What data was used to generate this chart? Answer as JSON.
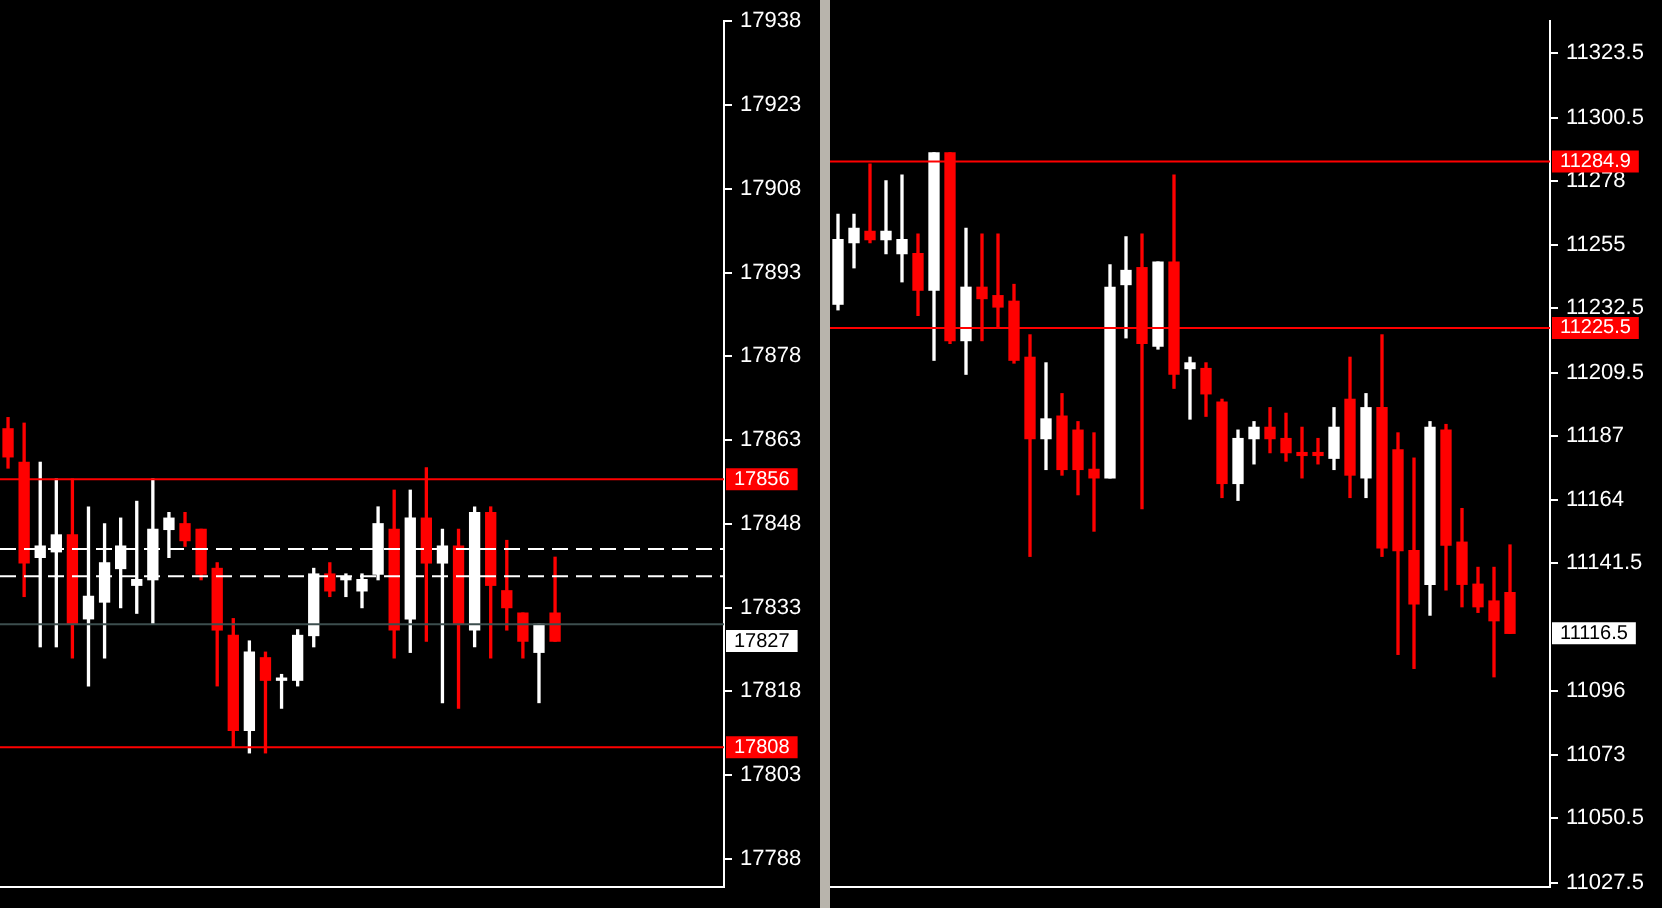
{
  "chart_data": [
    {
      "type": "candlestick",
      "categories": [
        null,
        null,
        null,
        null,
        null,
        null,
        null,
        null,
        null,
        null,
        null,
        null,
        null,
        null,
        null,
        null,
        null,
        null,
        null,
        null,
        null,
        null,
        null,
        null,
        null,
        null,
        null,
        null,
        null,
        null,
        null,
        null,
        null,
        null,
        null,
        null,
        null,
        null,
        null,
        null,
        null,
        null,
        null,
        null,
        null
      ],
      "ohlc": [
        [
          17865,
          17867,
          17858,
          17860
        ],
        [
          17859,
          17866,
          17835,
          17841
        ],
        [
          17842,
          17859,
          17826,
          17844
        ],
        [
          17843,
          17856,
          17826,
          17846
        ],
        [
          17846,
          17856,
          17824,
          17830
        ],
        [
          17831,
          17851,
          17819,
          17835
        ],
        [
          17834,
          17848,
          17824,
          17841
        ],
        [
          17840,
          17849,
          17833,
          17844
        ],
        [
          17837,
          17852,
          17832,
          17838
        ],
        [
          17838,
          17856,
          17830,
          17847
        ],
        [
          17847,
          17850,
          17842,
          17849
        ],
        [
          17848,
          17850,
          17844,
          17845
        ],
        [
          17847,
          17847,
          17838,
          17839
        ],
        [
          17840,
          17841,
          17819,
          17829
        ],
        [
          17828,
          17831,
          17808,
          17811
        ],
        [
          17811,
          17827,
          17807,
          17825
        ],
        [
          17824,
          17825,
          17807,
          17820
        ],
        [
          17820,
          17821,
          17815,
          17820
        ],
        [
          17820,
          17829,
          17819,
          17828
        ],
        [
          17828,
          17840,
          17826,
          17839
        ],
        [
          17839,
          17841,
          17835,
          17836
        ],
        [
          17838,
          17839,
          17835,
          17838
        ],
        [
          17836,
          17839,
          17833,
          17838
        ],
        [
          17839,
          17851,
          17838,
          17848
        ],
        [
          17847,
          17854,
          17824,
          17829
        ],
        [
          17831,
          17854,
          17825,
          17849
        ],
        [
          17849,
          17858,
          17827,
          17841
        ],
        [
          17841,
          17847,
          17816,
          17844
        ],
        [
          17844,
          17847,
          17815,
          17830
        ],
        [
          17829,
          17851,
          17826,
          17850
        ],
        [
          17850,
          17851,
          17824,
          17837
        ],
        [
          17836,
          17845,
          17829,
          17833
        ],
        [
          17832,
          17832,
          17824,
          17827
        ],
        [
          17825,
          17830,
          17816,
          17830
        ],
        [
          17832,
          17842,
          17827,
          17827
        ],
        null,
        null,
        null,
        null,
        null,
        null,
        null,
        null,
        null,
        null
      ],
      "colors": [
        "#ff0000",
        "#ff0000",
        "#ffffff",
        "#ffffff",
        "#ff0000",
        "#ffffff",
        "#ffffff",
        "#ffffff",
        "#ffffff",
        "#ffffff",
        "#ffffff",
        "#ff0000",
        "#ff0000",
        "#ff0000",
        "#ff0000",
        "#ffffff",
        "#ff0000",
        "#ffffff",
        "#ffffff",
        "#ffffff",
        "#ff0000",
        "#ffffff",
        "#ffffff",
        "#ffffff",
        "#ff0000",
        "#ffffff",
        "#ff0000",
        "#ffffff",
        "#ff0000",
        "#ffffff",
        "#ff0000",
        "#ff0000",
        "#ff0000",
        "#ffffff",
        "#ff0000",
        null,
        null,
        null,
        null,
        null,
        null,
        null,
        null,
        null,
        null
      ],
      "ylim": [
        17783,
        17938
      ],
      "yticks": [
        17788,
        17803,
        17818,
        17833,
        17848,
        17863,
        17878,
        17893,
        17908,
        17923,
        17938
      ],
      "tick_labels": "y",
      "ref_lines": [
        {
          "axis": "y",
          "value": 17856,
          "label": "17856",
          "color": "#ff0000"
        },
        {
          "axis": "y",
          "value": 17808,
          "label": "17808",
          "color": "#ff0000"
        },
        {
          "axis": "y",
          "value": 17830,
          "color": "#3c4e4e"
        },
        {
          "axis": "y",
          "value": 17843.5,
          "color": "#ffffff",
          "line_style": "dashed"
        },
        {
          "axis": "y",
          "value": 17838.6,
          "color": "#ffffff",
          "line_style": "dashed"
        }
      ],
      "annotations": [
        "17827"
      ]
    },
    {
      "type": "candlestick",
      "categories": [
        null,
        null,
        null,
        null,
        null,
        null,
        null,
        null,
        null,
        null,
        null,
        null,
        null,
        null,
        null,
        null,
        null,
        null,
        null,
        null,
        null,
        null,
        null,
        null,
        null,
        null,
        null,
        null,
        null,
        null,
        null,
        null,
        null,
        null,
        null,
        null,
        null,
        null,
        null,
        null,
        null,
        null,
        null,
        null,
        null
      ],
      "ohlc": [
        [
          11234,
          11266,
          11232,
          11257
        ],
        [
          11256,
          11266,
          11247,
          11261
        ],
        [
          11260,
          11284,
          11256,
          11257
        ],
        [
          11257,
          11278,
          11252,
          11260
        ],
        [
          11252,
          11280,
          11242,
          11257
        ],
        [
          11252,
          11259,
          11230,
          11239
        ],
        [
          11239,
          11288,
          11214,
          11288
        ],
        [
          11288,
          11288,
          11220,
          11221
        ],
        [
          11221,
          11261,
          11209,
          11240
        ],
        [
          11240,
          11259,
          11221,
          11236
        ],
        [
          11237,
          11259,
          11226,
          11233
        ],
        [
          11235,
          11241,
          11213,
          11214
        ],
        [
          11215,
          11223,
          11144,
          11186
        ],
        [
          11186,
          11213,
          11175,
          11193
        ],
        [
          11194,
          11202,
          11173,
          11175
        ],
        [
          11189,
          11192,
          11166,
          11175
        ],
        [
          11175,
          11188,
          11153,
          11172
        ],
        [
          11172,
          11248,
          11172,
          11240
        ],
        [
          11241,
          11258,
          11222,
          11246
        ],
        [
          11247,
          11259,
          11161,
          11220
        ],
        [
          11219,
          11249,
          11218,
          11249
        ],
        [
          11249,
          11280,
          11204,
          11209
        ],
        [
          11211,
          11215,
          11193,
          11213
        ],
        [
          11211,
          11213,
          11194,
          11202
        ],
        [
          11199,
          11200,
          11165,
          11170
        ],
        [
          11170,
          11189,
          11164,
          11186
        ],
        [
          11186,
          11192,
          11177,
          11190
        ],
        [
          11190,
          11197,
          11181,
          11186
        ],
        [
          11186,
          11195,
          11178,
          11181
        ],
        [
          11181,
          11190,
          11172,
          11180
        ],
        [
          11181,
          11186,
          11177,
          11180
        ],
        [
          11179,
          11197,
          11175,
          11190
        ],
        [
          11200,
          11215,
          11165,
          11173
        ],
        [
          11172,
          11202,
          11165,
          11197
        ],
        [
          11197,
          11223,
          11144,
          11147
        ],
        [
          11182,
          11188,
          11109,
          11146
        ],
        [
          11146,
          11179,
          11104,
          11127
        ],
        [
          11134,
          11192,
          11123,
          11190
        ],
        [
          11189,
          11191,
          11132,
          11148
        ],
        [
          11149,
          11161,
          11126,
          11134
        ],
        [
          11134,
          11140,
          11124,
          11126
        ],
        [
          11128,
          11140,
          11101,
          11121
        ],
        [
          11131,
          11148,
          11116.5,
          11116.5
        ],
        null,
        null
      ],
      "colors": [
        "#ffffff",
        "#ffffff",
        "#ff0000",
        "#ffffff",
        "#ffffff",
        "#ff0000",
        "#ffffff",
        "#ff0000",
        "#ffffff",
        "#ff0000",
        "#ff0000",
        "#ff0000",
        "#ff0000",
        "#ffffff",
        "#ff0000",
        "#ff0000",
        "#ff0000",
        "#ffffff",
        "#ffffff",
        "#ff0000",
        "#ffffff",
        "#ff0000",
        "#ffffff",
        "#ff0000",
        "#ff0000",
        "#ffffff",
        "#ffffff",
        "#ff0000",
        "#ff0000",
        "#ff0000",
        "#ff0000",
        "#ffffff",
        "#ff0000",
        "#ffffff",
        "#ff0000",
        "#ff0000",
        "#ff0000",
        "#ffffff",
        "#ff0000",
        "#ff0000",
        "#ff0000",
        "#ff0000",
        "#ff0000",
        null,
        null
      ],
      "ylim": [
        11026,
        11335
      ],
      "yticks": [
        11027.5,
        11050.5,
        11073,
        11096,
        11141.5,
        11164,
        11187,
        11209.5,
        11232.5,
        11255,
        11278,
        11300.5,
        11323.5
      ],
      "tick_labels": "y",
      "ref_lines": [
        {
          "axis": "y",
          "value": 11284.9,
          "label": "11284.9",
          "color": "#ff0000"
        },
        {
          "axis": "y",
          "value": 11225.5,
          "label": "11225.5",
          "color": "#ff0000"
        }
      ],
      "annotations": [
        "11116.5"
      ]
    }
  ]
}
